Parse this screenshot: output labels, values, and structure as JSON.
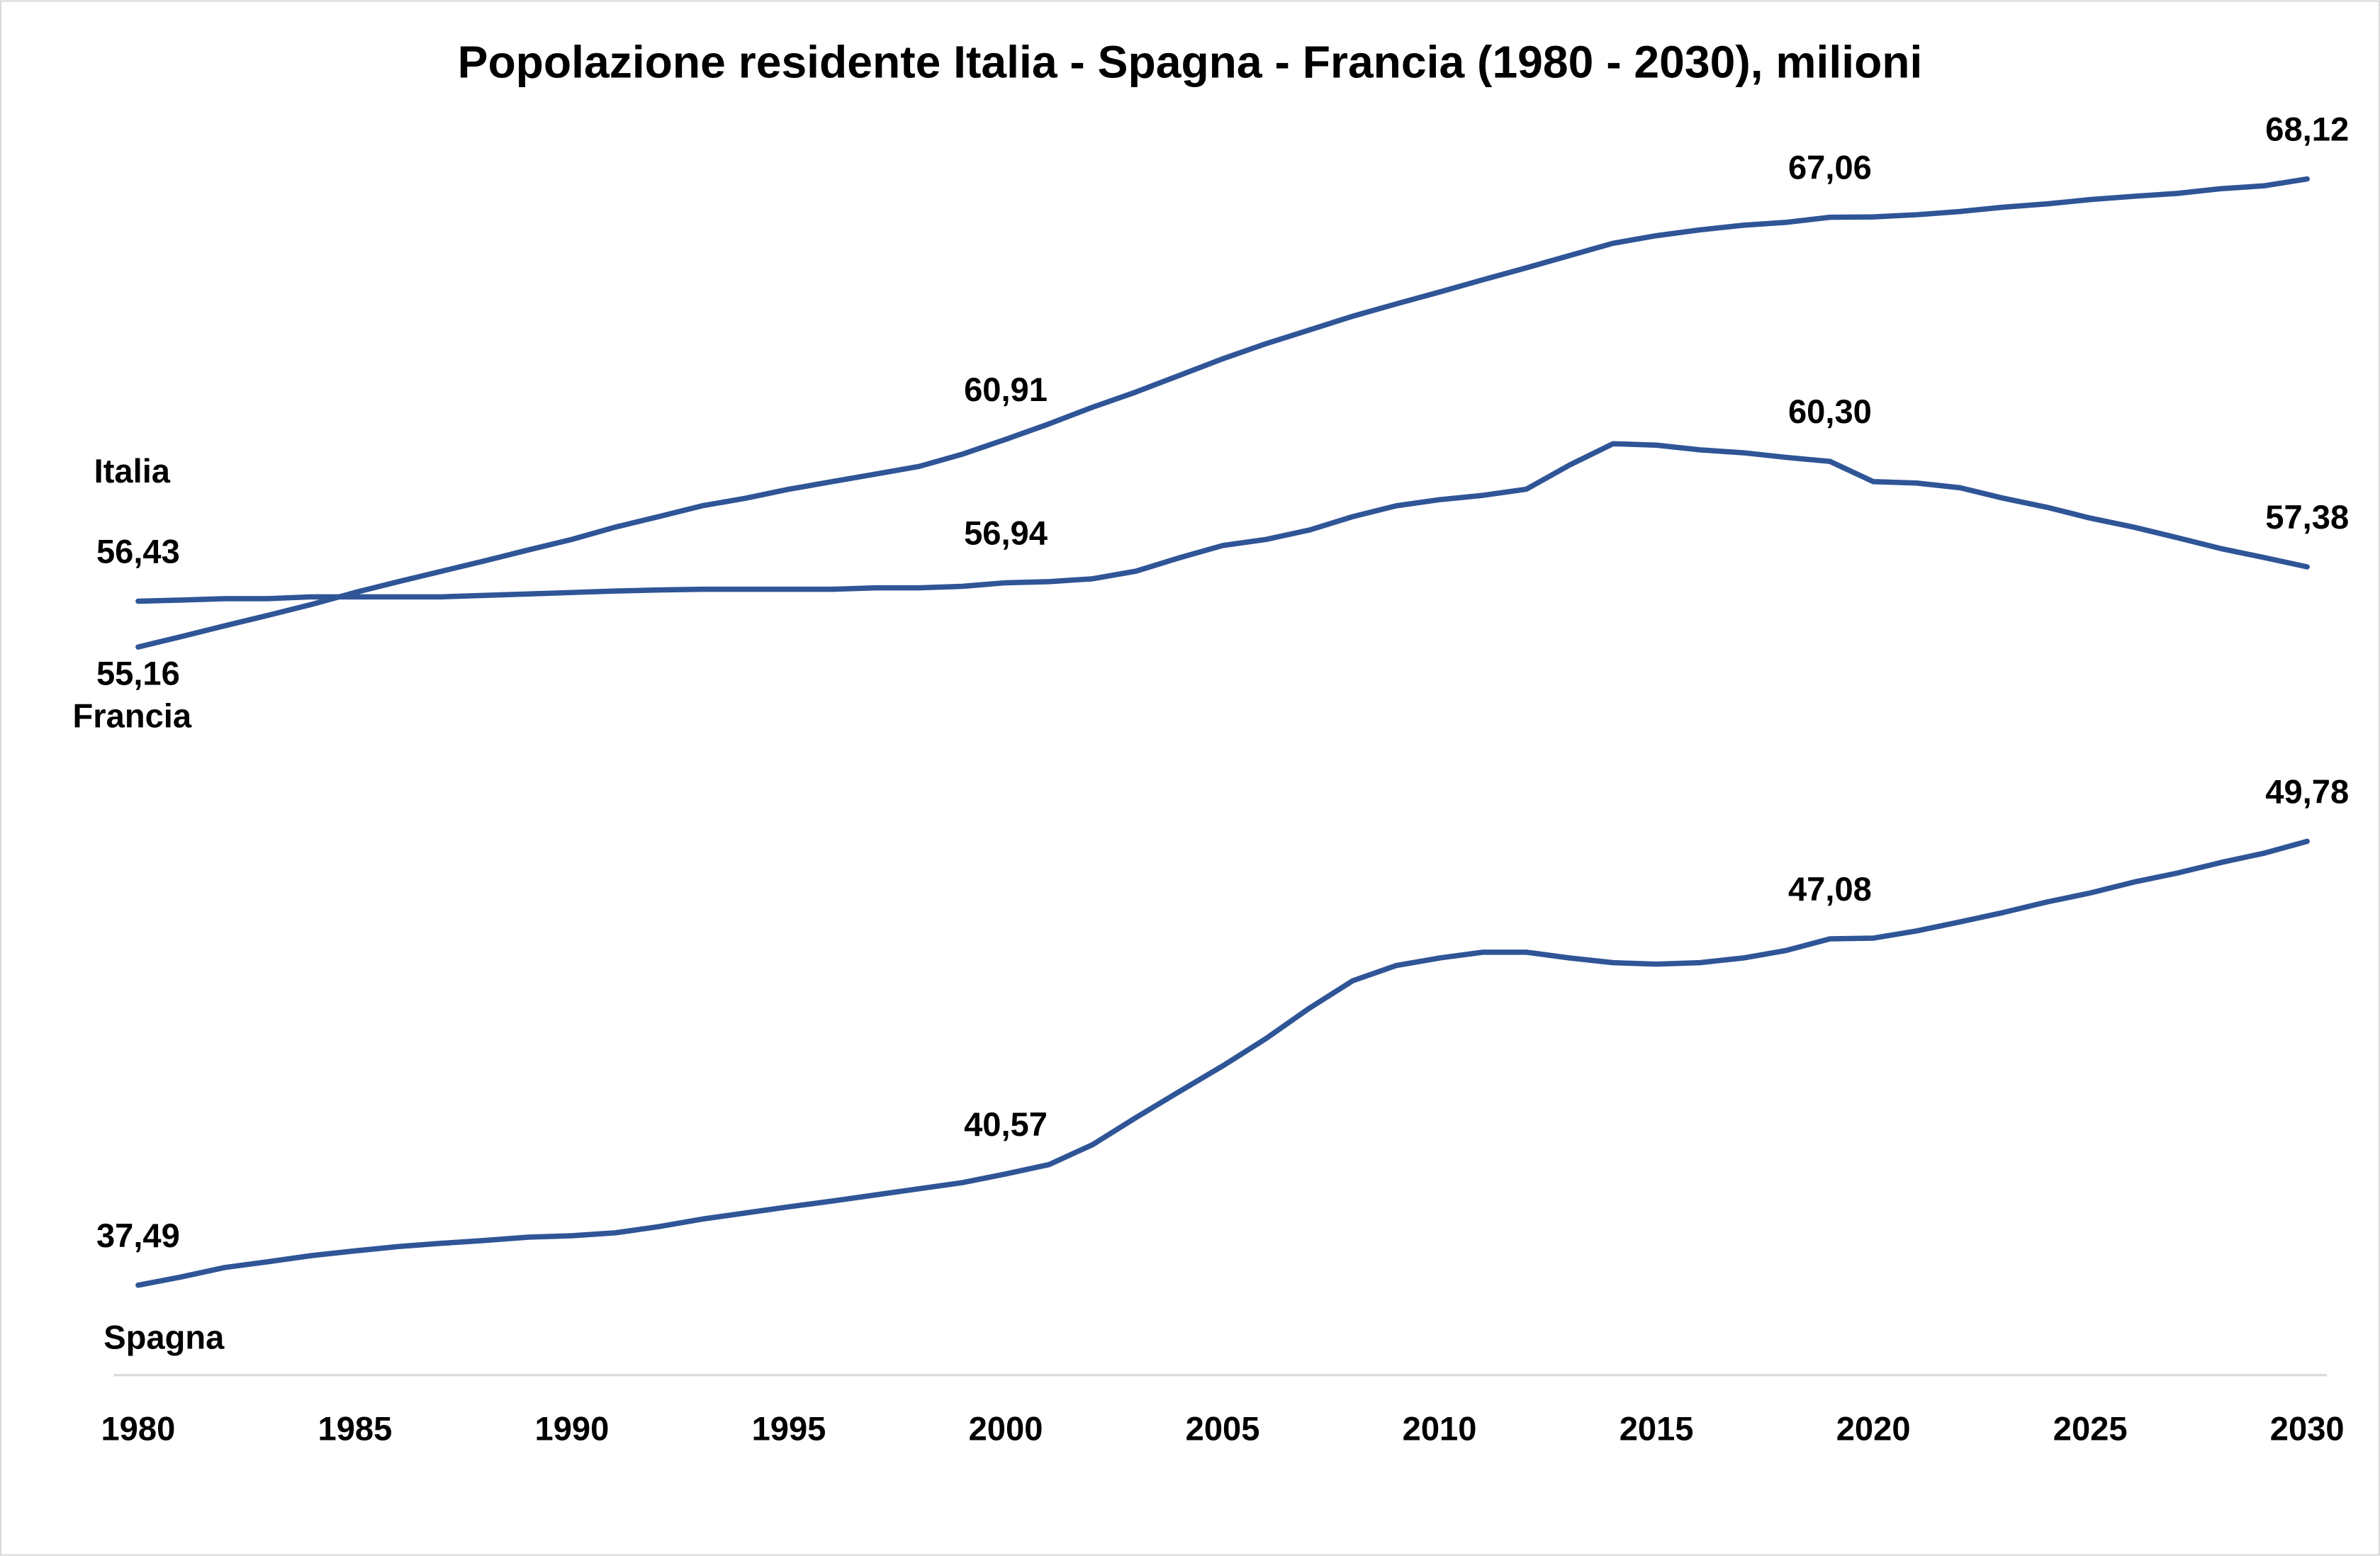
{
  "chart_data": {
    "type": "line",
    "title": "Popolazione residente Italia - Spagna - Francia (1980 - 2030), milioni",
    "x": [
      1980,
      1981,
      1982,
      1983,
      1984,
      1985,
      1986,
      1987,
      1988,
      1989,
      1990,
      1991,
      1992,
      1993,
      1994,
      1995,
      1996,
      1997,
      1998,
      1999,
      2000,
      2001,
      2002,
      2003,
      2004,
      2005,
      2006,
      2007,
      2008,
      2009,
      2010,
      2011,
      2012,
      2013,
      2014,
      2015,
      2016,
      2017,
      2018,
      2019,
      2020,
      2021,
      2022,
      2023,
      2024,
      2025,
      2026,
      2027,
      2028,
      2029,
      2030
    ],
    "xlim": [
      1980,
      2030
    ],
    "xticks": [
      1980,
      1985,
      1990,
      1995,
      2000,
      2005,
      2010,
      2015,
      2020,
      2025,
      2030
    ],
    "ylim": [
      35,
      70
    ],
    "grid": false,
    "series": [
      {
        "name": "Italia",
        "color": "#2f5597",
        "values": [
          56.43,
          56.46,
          56.5,
          56.5,
          56.55,
          56.55,
          56.55,
          56.55,
          56.59,
          56.63,
          56.67,
          56.71,
          56.74,
          56.76,
          56.76,
          56.76,
          56.76,
          56.8,
          56.8,
          56.84,
          56.94,
          56.97,
          57.05,
          57.26,
          57.63,
          57.97,
          58.14,
          58.4,
          58.77,
          59.07,
          59.24,
          59.36,
          59.53,
          60.2,
          60.79,
          60.75,
          60.62,
          60.54,
          60.41,
          60.3,
          59.74,
          59.7,
          59.57,
          59.28,
          59.03,
          58.73,
          58.48,
          58.19,
          57.89,
          57.64,
          57.38
        ],
        "value_labels": [
          "56,43",
          null,
          null,
          null,
          null,
          null,
          null,
          null,
          null,
          null,
          null,
          null,
          null,
          null,
          null,
          null,
          null,
          null,
          null,
          null,
          "56,94",
          null,
          null,
          null,
          null,
          null,
          null,
          null,
          null,
          null,
          null,
          null,
          null,
          null,
          null,
          null,
          null,
          null,
          null,
          "60,30",
          null,
          null,
          null,
          null,
          null,
          null,
          null,
          null,
          null,
          null,
          "57,38"
        ]
      },
      {
        "name": "Francia",
        "color": "#2f5597",
        "values": [
          55.16,
          55.45,
          55.75,
          56.04,
          56.34,
          56.67,
          56.97,
          57.26,
          57.55,
          57.85,
          58.14,
          58.48,
          58.77,
          59.07,
          59.28,
          59.53,
          59.74,
          59.95,
          60.16,
          60.5,
          60.91,
          61.34,
          61.8,
          62.22,
          62.68,
          63.14,
          63.56,
          63.94,
          64.32,
          64.66,
          64.99,
          65.33,
          65.66,
          66.0,
          66.34,
          66.55,
          66.71,
          66.84,
          66.92,
          67.06,
          67.07,
          67.13,
          67.22,
          67.34,
          67.43,
          67.55,
          67.64,
          67.72,
          67.85,
          67.93,
          68.12
        ],
        "value_labels": [
          "55,16",
          null,
          null,
          null,
          null,
          null,
          null,
          null,
          null,
          null,
          null,
          null,
          null,
          null,
          null,
          null,
          null,
          null,
          null,
          null,
          "60,91",
          null,
          null,
          null,
          null,
          null,
          null,
          null,
          null,
          null,
          null,
          null,
          null,
          null,
          null,
          null,
          null,
          null,
          null,
          "67,06",
          null,
          null,
          null,
          null,
          null,
          null,
          null,
          null,
          null,
          null,
          "68,12"
        ]
      },
      {
        "name": "Spagna",
        "color": "#2f5597",
        "values": [
          37.49,
          37.72,
          37.98,
          38.14,
          38.31,
          38.44,
          38.56,
          38.65,
          38.73,
          38.82,
          38.86,
          38.94,
          39.11,
          39.32,
          39.49,
          39.66,
          39.82,
          39.99,
          40.16,
          40.33,
          40.57,
          40.83,
          41.38,
          42.13,
          42.85,
          43.56,
          44.32,
          45.16,
          45.92,
          46.34,
          46.55,
          46.71,
          46.71,
          46.55,
          46.42,
          46.38,
          46.42,
          46.55,
          46.76,
          47.08,
          47.1,
          47.3,
          47.55,
          47.81,
          48.1,
          48.35,
          48.65,
          48.9,
          49.19,
          49.45,
          49.78
        ],
        "value_labels": [
          "37,49",
          null,
          null,
          null,
          null,
          null,
          null,
          null,
          null,
          null,
          null,
          null,
          null,
          null,
          null,
          null,
          null,
          null,
          null,
          null,
          "40,57",
          null,
          null,
          null,
          null,
          null,
          null,
          null,
          null,
          null,
          null,
          null,
          null,
          null,
          null,
          null,
          null,
          null,
          null,
          "47,08",
          null,
          null,
          null,
          null,
          null,
          null,
          null,
          null,
          null,
          null,
          "49,78"
        ]
      }
    ]
  }
}
